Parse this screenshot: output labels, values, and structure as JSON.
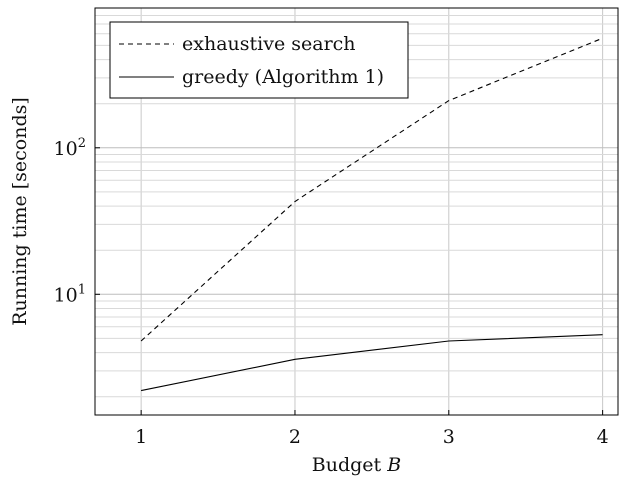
{
  "chart_data": {
    "type": "line",
    "title": "",
    "xlabel": "Budget",
    "xlabel_var": "B",
    "ylabel": "Running time [seconds]",
    "x": [
      1,
      2,
      3,
      4
    ],
    "xticks": [
      "1",
      "2",
      "3",
      "4"
    ],
    "xlim": [
      0.7,
      4.1
    ],
    "yscale": "log",
    "ylim": [
      1.5,
      900
    ],
    "yticks": [
      {
        "base": "10",
        "exp": "1",
        "value": 10
      },
      {
        "base": "10",
        "exp": "2",
        "value": 100
      }
    ],
    "grid": true,
    "legend_position": "top-left",
    "series": [
      {
        "name": "exhaustive search",
        "style": "dashed",
        "color": "#000000",
        "values": [
          4.8,
          43,
          210,
          560
        ]
      },
      {
        "name": "greedy (Algorithm 1)",
        "style": "solid",
        "color": "#000000",
        "values": [
          2.2,
          3.6,
          4.8,
          5.3
        ]
      }
    ]
  }
}
